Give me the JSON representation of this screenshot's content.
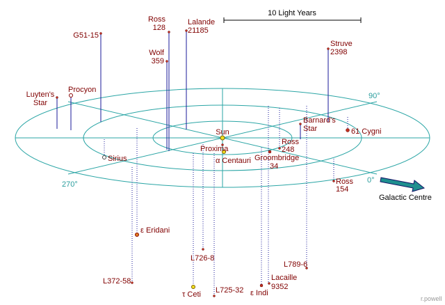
{
  "scale_label": "10 Light Years",
  "axis_labels": [
    "90°",
    "0°",
    "270°"
  ],
  "galactic_centre": "Galactic Centre",
  "credit": "r.powell",
  "stars": [
    {
      "name": [
        "Ross",
        "128"
      ]
    },
    {
      "name": [
        "Lalande",
        "21185"
      ]
    },
    {
      "name": [
        "G51-15"
      ]
    },
    {
      "name": [
        "Wolf",
        "359"
      ]
    },
    {
      "name": [
        "Struve",
        "2398"
      ]
    },
    {
      "name": [
        "Luyten's",
        "Star"
      ]
    },
    {
      "name": [
        "Procyon"
      ]
    },
    {
      "name": [
        "Barnard's",
        "Star"
      ]
    },
    {
      "name": [
        "61 Cygni"
      ]
    },
    {
      "name": [
        "Ross",
        "248"
      ]
    },
    {
      "name": [
        "Sun"
      ]
    },
    {
      "name": [
        "Proxima"
      ]
    },
    {
      "name": [
        "α Centauri"
      ]
    },
    {
      "name": [
        "Groombridge",
        "34"
      ]
    },
    {
      "name": [
        "Sirius"
      ]
    },
    {
      "name": [
        "Ross",
        "154"
      ]
    },
    {
      "name": [
        "ε Eridani"
      ]
    },
    {
      "name": [
        "L726-8"
      ]
    },
    {
      "name": [
        "L372-58"
      ]
    },
    {
      "name": [
        "τ Ceti"
      ]
    },
    {
      "name": [
        "L725-32"
      ]
    },
    {
      "name": [
        "ε Indi"
      ]
    },
    {
      "name": [
        "Lacaille",
        "9352"
      ]
    },
    {
      "name": [
        "L789-6"
      ]
    }
  ]
}
